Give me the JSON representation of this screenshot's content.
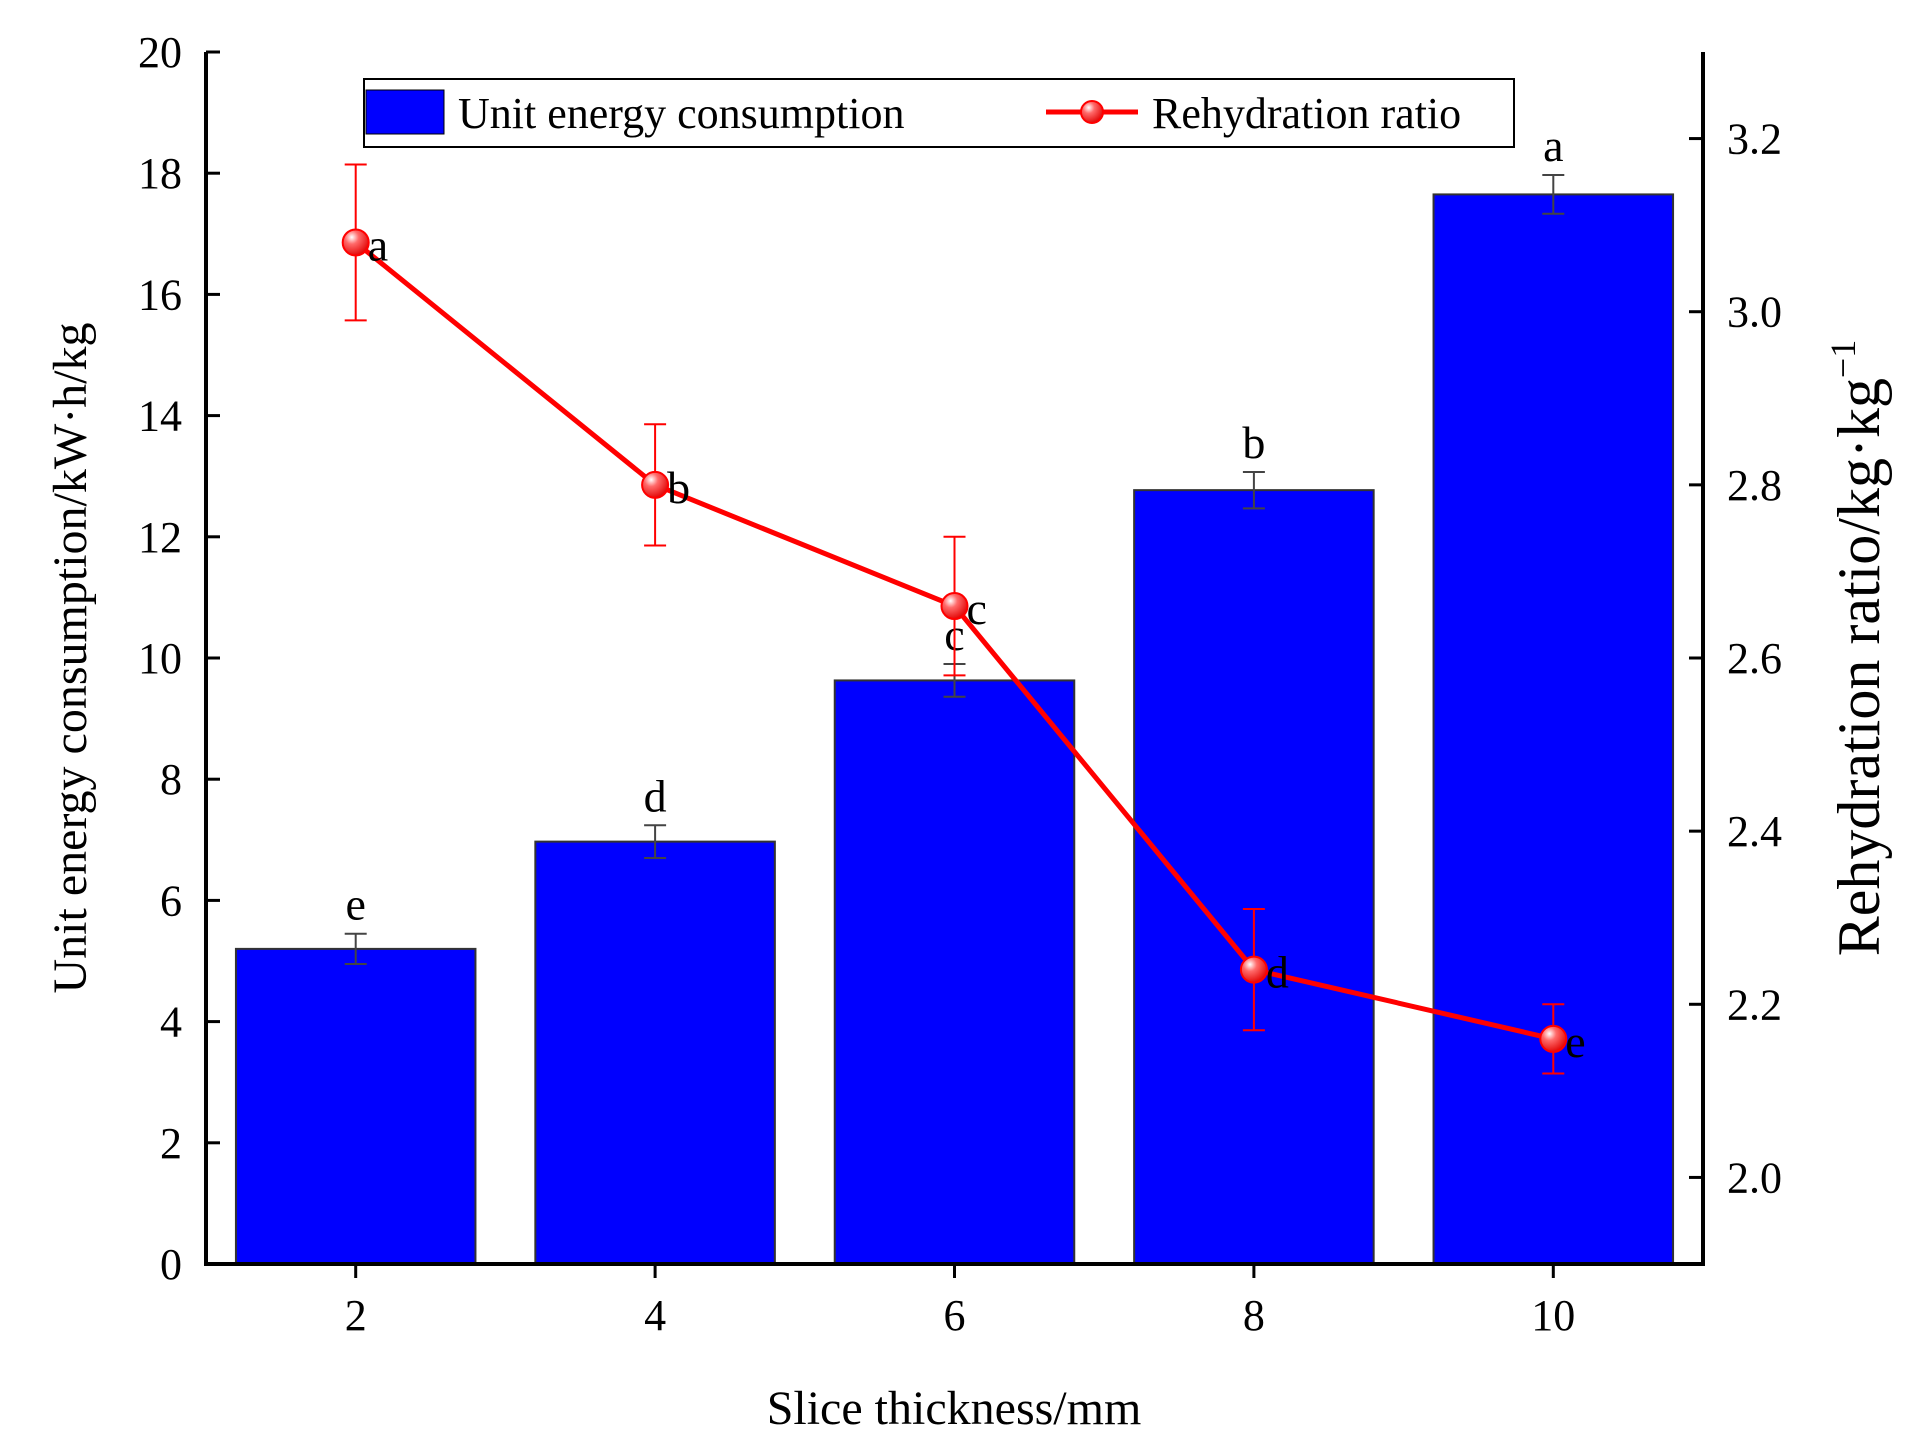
{
  "chart_data": {
    "type": "bar",
    "categories": [
      "2",
      "4",
      "6",
      "8",
      "10"
    ],
    "xlabel": "Slice thickness/mm",
    "ylabel": "Unit energy consumption/kW·h/kg",
    "ylabel_right": "Rehydration ratio/kg·kg",
    "ylabel_right_sup": "−1",
    "ylim": [
      0,
      20
    ],
    "y2lim": [
      1.9,
      3.3
    ],
    "y_ticks": [
      "0",
      "2",
      "4",
      "6",
      "8",
      "10",
      "12",
      "14",
      "16",
      "18",
      "20"
    ],
    "y2_ticks": [
      "2.0",
      "2.2",
      "2.4",
      "2.6",
      "2.8",
      "3.0",
      "3.2"
    ],
    "legend_position": "top",
    "grid": false,
    "series": [
      {
        "name": "Unit energy consumption",
        "type": "bar",
        "axis": "left",
        "color": "#0000ff",
        "values": [
          5.2,
          6.97,
          9.63,
          12.77,
          17.65
        ],
        "errors": [
          0.25,
          0.27,
          0.27,
          0.3,
          0.32
        ],
        "labels": [
          "e",
          "d",
          "c",
          "b",
          "a"
        ]
      },
      {
        "name": "Rehydration ratio",
        "type": "line",
        "axis": "right",
        "color": "#ff0000",
        "values": [
          3.08,
          2.8,
          2.66,
          2.24,
          2.16
        ],
        "errors": [
          0.09,
          0.07,
          0.08,
          0.07,
          0.04
        ],
        "labels": [
          "a",
          "b",
          "c",
          "d",
          "e"
        ]
      }
    ]
  }
}
